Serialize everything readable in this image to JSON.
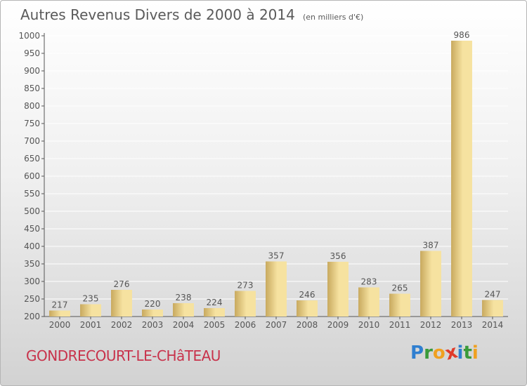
{
  "header": {
    "title": "Autres Revenus Divers de 2000 à 2014",
    "subtitle": "(en milliers d'€)"
  },
  "footer": {
    "commune": "GONDRECOURT-LE-CHâTEAU",
    "logo": {
      "letters": [
        "P",
        "r",
        "o",
        "x",
        "i",
        "t",
        "i"
      ],
      "colors": [
        "#2f7fd0",
        "#3a9a3a",
        "#f0a020",
        "#e03a2a",
        "#2f7fd0",
        "#3a9a3a",
        "#f0a020"
      ]
    }
  },
  "colors": {
    "bar_light": "#f6e2a0",
    "bar_dark": "#c8a95e",
    "grid": "#ffffff",
    "axis": "#555555",
    "text": "#555555"
  },
  "chart_data": {
    "type": "bar",
    "categories": [
      "2000",
      "2001",
      "2002",
      "2003",
      "2004",
      "2005",
      "2006",
      "2007",
      "2008",
      "2009",
      "2010",
      "2011",
      "2012",
      "2013",
      "2014"
    ],
    "values": [
      217,
      235,
      276,
      220,
      238,
      224,
      273,
      357,
      246,
      356,
      283,
      265,
      387,
      986,
      247
    ],
    "title": "Autres Revenus Divers de 2000 à 2014",
    "subtitle": "(en milliers d'€)",
    "ylim": [
      200,
      1000
    ],
    "yticks": [
      200,
      250,
      300,
      350,
      400,
      450,
      500,
      550,
      600,
      650,
      700,
      750,
      800,
      850,
      900,
      950,
      1000
    ],
    "grid": true
  }
}
